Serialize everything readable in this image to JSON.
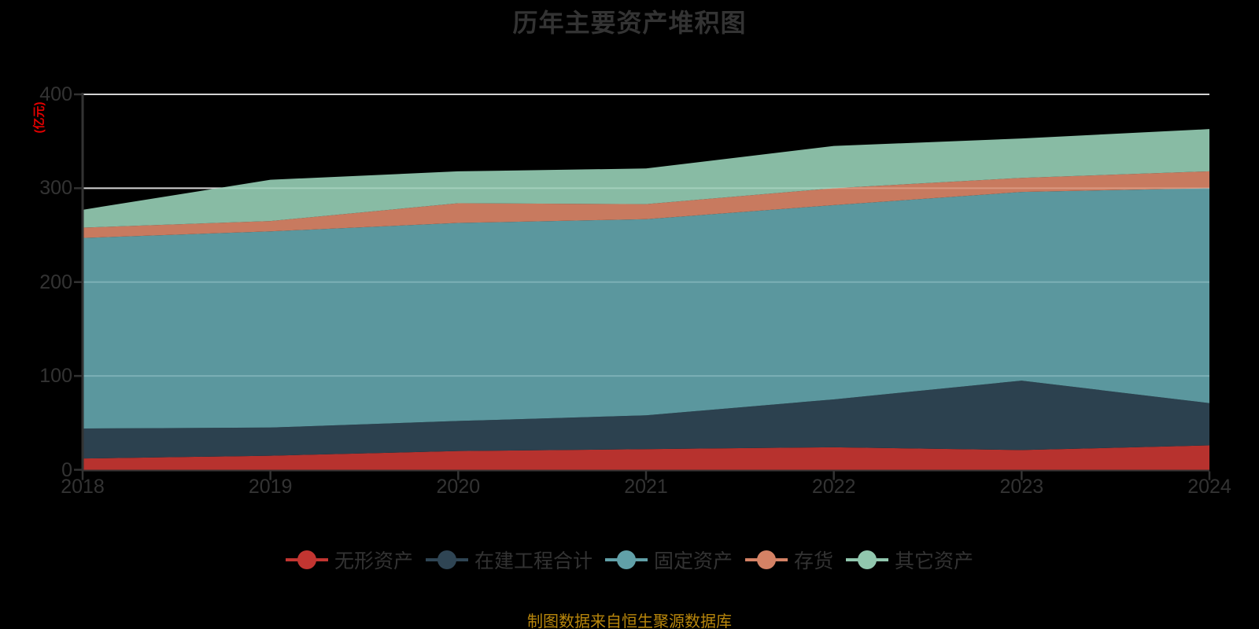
{
  "chart_data": {
    "type": "area",
    "stacked": true,
    "title": "历年主要资产堆积图",
    "ylabel": "(亿元)",
    "footer": "制图数据来自恒生聚源数据库",
    "x": [
      2018,
      2019,
      2020,
      2021,
      2022,
      2023,
      2024
    ],
    "yticks": [
      0,
      100,
      200,
      300,
      400
    ],
    "ylim": [
      0,
      400
    ],
    "grid": true,
    "legend_position": "bottom",
    "series": [
      {
        "name": "无形资产",
        "color": "#c23531",
        "values": [
          12,
          15,
          20,
          22,
          24,
          21,
          26
        ]
      },
      {
        "name": "在建工程合计",
        "color": "#2f4554",
        "values": [
          32,
          30,
          32,
          36,
          51,
          74,
          45
        ]
      },
      {
        "name": "固定资产",
        "color": "#61a0a8",
        "values": [
          203,
          209,
          211,
          209,
          207,
          201,
          229
        ]
      },
      {
        "name": "存货",
        "color": "#d48265",
        "values": [
          11,
          11,
          21,
          16,
          18,
          15,
          18
        ]
      },
      {
        "name": "其它资产",
        "color": "#91c7ae",
        "values": [
          19,
          44,
          34,
          38,
          45,
          42,
          45
        ]
      }
    ],
    "colors": {
      "text": "#333333",
      "axis": "#333333",
      "grid": "#cccccc",
      "ylabel": "#e60000",
      "footer": "#b8860b",
      "background": "#000000"
    }
  }
}
